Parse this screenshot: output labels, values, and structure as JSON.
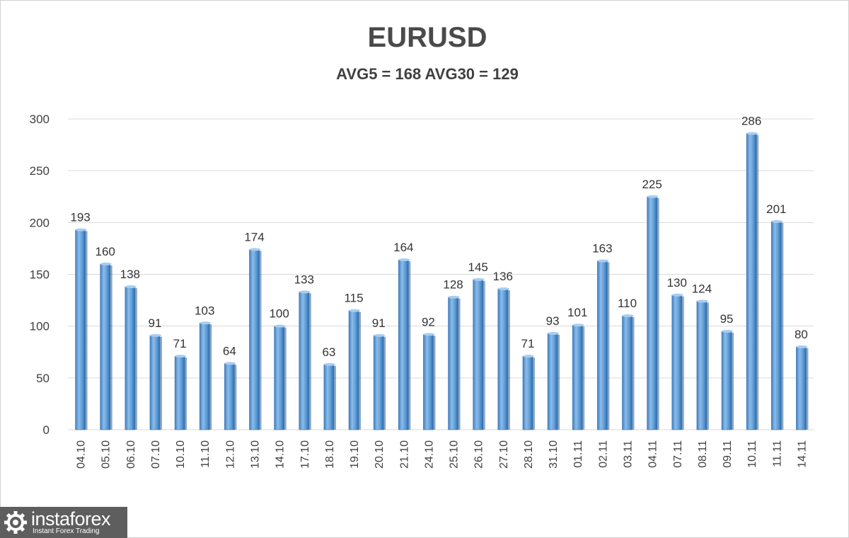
{
  "chart_data": {
    "type": "bar",
    "title": "EURUSD",
    "subtitle": "AVG5 = 168 AVG30 = 129",
    "categories": [
      "04.10",
      "05.10",
      "06.10",
      "07.10",
      "10.10",
      "11.10",
      "12.10",
      "13.10",
      "14.10",
      "17.10",
      "18.10",
      "19.10",
      "20.10",
      "21.10",
      "24.10",
      "25.10",
      "26.10",
      "27.10",
      "28.10",
      "31.10",
      "01.11",
      "02.11",
      "03.11",
      "04.11",
      "07.11",
      "08.11",
      "09.11",
      "10.11",
      "11.11",
      "14.11"
    ],
    "values": [
      193,
      160,
      138,
      91,
      71,
      103,
      64,
      174,
      100,
      133,
      63,
      115,
      91,
      164,
      92,
      128,
      145,
      136,
      71,
      93,
      101,
      163,
      110,
      225,
      130,
      124,
      95,
      286,
      201,
      80
    ],
    "ylim": [
      0,
      300
    ],
    "yticks": [
      0,
      50,
      100,
      150,
      200,
      250,
      300
    ],
    "grid": true,
    "legend": "none",
    "bar_color": "#5b9bd5"
  },
  "logo": {
    "name": "instaforex",
    "tagline": "Instant Forex Trading"
  }
}
